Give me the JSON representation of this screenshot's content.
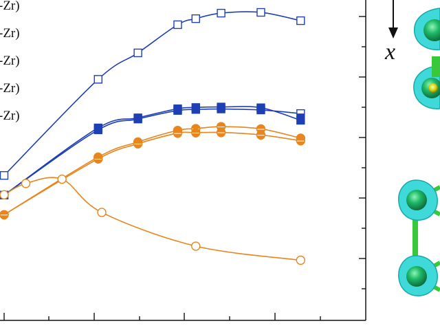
{
  "chart_data": {
    "type": "line",
    "title": "",
    "xlabel": "",
    "ylabel": "",
    "legend_placement": "top-left",
    "legend_entries": [
      "-Zr)",
      "-Zr)",
      "-Zr)",
      "-Zr)",
      "-Zr)"
    ],
    "xlim": [
      0,
      1.0
    ],
    "ylim": [
      0,
      1.0
    ],
    "grid": false,
    "series": [
      {
        "color": "#1f3fb4",
        "marker": "open-square",
        "x": [
          0.0,
          0.26,
          0.37,
          0.48,
          0.53,
          0.6,
          0.71,
          0.82
        ],
        "y": [
          0.352,
          0.734,
          0.839,
          0.951,
          0.975,
          0.997,
          1.0,
          0.967
        ]
      },
      {
        "color": "#1f3fb4",
        "marker": "half-filled-square",
        "x": [
          0.0,
          0.26,
          0.37,
          0.48,
          0.53,
          0.6,
          0.71,
          0.82
        ],
        "y": [
          0.274,
          0.533,
          0.576,
          0.61,
          0.614,
          0.616,
          0.612,
          0.598
        ]
      },
      {
        "color": "#1f3fb4",
        "marker": "filled-square",
        "x": [
          0.0,
          0.26,
          0.37,
          0.48,
          0.53,
          0.6,
          0.71,
          0.82
        ],
        "y": [
          0.274,
          0.541,
          0.581,
          0.617,
          0.622,
          0.624,
          0.621,
          0.571
        ]
      },
      {
        "color": "#e8851c",
        "marker": "half-filled-circle",
        "x": [
          0.0,
          0.26,
          0.37,
          0.48,
          0.53,
          0.6,
          0.71,
          0.82
        ],
        "y": [
          0.196,
          0.425,
          0.485,
          0.531,
          0.538,
          0.546,
          0.537,
          0.5
        ]
      },
      {
        "color": "#e8851c",
        "marker": "half-filled-circle",
        "x": [
          0.0,
          0.26,
          0.37,
          0.48,
          0.53,
          0.6,
          0.71,
          0.82
        ],
        "y": [
          0.196,
          0.418,
          0.478,
          0.52,
          0.522,
          0.523,
          0.513,
          0.49
        ]
      },
      {
        "color": "#e8851c",
        "marker": "open-circle",
        "x": [
          0.0,
          0.06,
          0.16,
          0.27,
          0.53,
          0.82
        ],
        "y": [
          0.275,
          0.32,
          0.337,
          0.205,
          0.071,
          0.015
        ]
      }
    ],
    "side_panel": {
      "axis_letter": "x",
      "arrow": "down",
      "description_colors": {
        "atom": "#16a15a",
        "orbital": "#3fd9d9",
        "bond": "#39c839",
        "center": "#d8d81a"
      }
    }
  }
}
